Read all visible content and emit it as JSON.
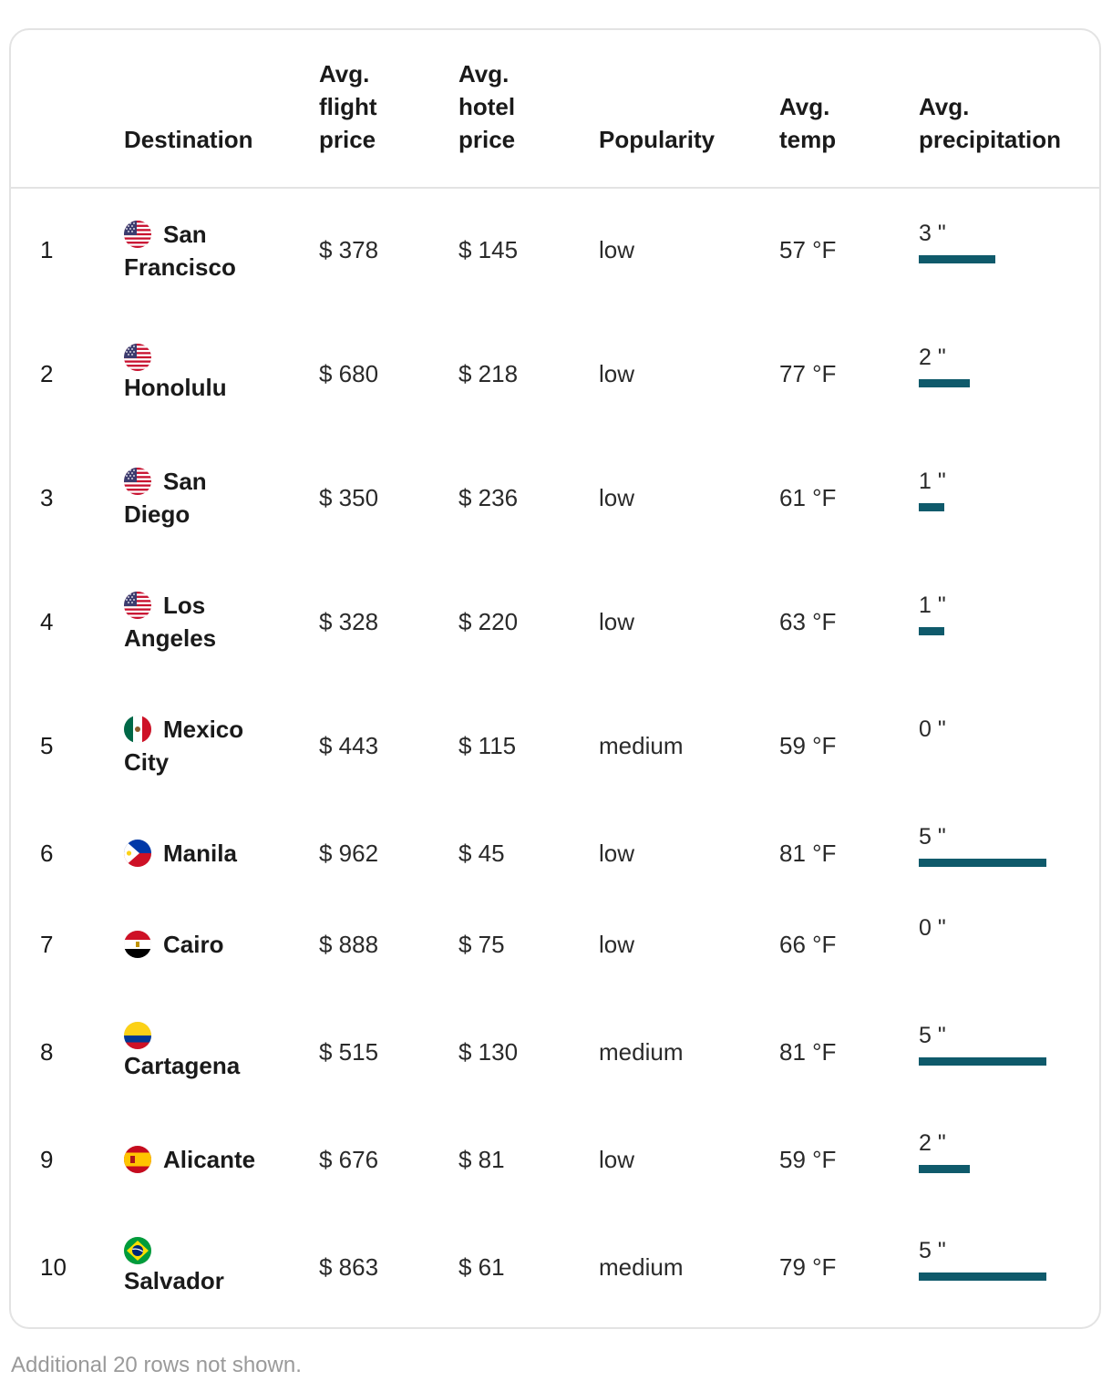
{
  "table": {
    "headers": {
      "rank": "",
      "destination": "Destination",
      "flight_line1": "Avg.",
      "flight_line2": "flight",
      "flight_line3": "price",
      "hotel_line1": "Avg.",
      "hotel_line2": "hotel",
      "hotel_line3": "price",
      "popularity": "Popularity",
      "temp_line1": "Avg.",
      "temp_line2": "temp",
      "precip_line1": "Avg.",
      "precip_line2": "precipitation"
    },
    "rows": [
      {
        "rank": "1",
        "flag": "us-flag",
        "dest_a": "San",
        "dest_b": "Francisco",
        "flight": "$ 378",
        "hotel": "$ 145",
        "popularity": "low",
        "temp": "57 °F",
        "precip": "3 \"",
        "precip_inches": 3
      },
      {
        "rank": "2",
        "flag": "us-flag",
        "dest_a": "",
        "dest_b": "Honolulu",
        "flight": "$ 680",
        "hotel": "$ 218",
        "popularity": "low",
        "temp": "77 °F",
        "precip": "2 \"",
        "precip_inches": 2
      },
      {
        "rank": "3",
        "flag": "us-flag",
        "dest_a": "San",
        "dest_b": "Diego",
        "flight": "$ 350",
        "hotel": "$ 236",
        "popularity": "low",
        "temp": "61 °F",
        "precip": "1 \"",
        "precip_inches": 1
      },
      {
        "rank": "4",
        "flag": "us-flag",
        "dest_a": "Los",
        "dest_b": "Angeles",
        "flight": "$ 328",
        "hotel": "$ 220",
        "popularity": "low",
        "temp": "63 °F",
        "precip": "1 \"",
        "precip_inches": 1
      },
      {
        "rank": "5",
        "flag": "mexico-flag",
        "dest_a": "Mexico",
        "dest_b": "City",
        "flight": "$ 443",
        "hotel": "$ 115",
        "popularity": "medium",
        "temp": "59 °F",
        "precip": "0 \"",
        "precip_inches": 0
      },
      {
        "rank": "6",
        "flag": "philippines-flag",
        "dest_a": "Manila",
        "dest_b": "",
        "flight": "$ 962",
        "hotel": "$ 45",
        "popularity": "low",
        "temp": "81 °F",
        "precip": "5 \"",
        "precip_inches": 5
      },
      {
        "rank": "7",
        "flag": "egypt-flag",
        "dest_a": "Cairo",
        "dest_b": "",
        "flight": "$ 888",
        "hotel": "$ 75",
        "popularity": "low",
        "temp": "66 °F",
        "precip": "0 \"",
        "precip_inches": 0
      },
      {
        "rank": "8",
        "flag": "colombia-flag",
        "dest_a": "",
        "dest_b": "Cartagena",
        "flight": "$ 515",
        "hotel": "$ 130",
        "popularity": "medium",
        "temp": "81 °F",
        "precip": "5 \"",
        "precip_inches": 5
      },
      {
        "rank": "9",
        "flag": "spain-flag",
        "dest_a": "Alicante",
        "dest_b": "",
        "flight": "$ 676",
        "hotel": "$ 81",
        "popularity": "low",
        "temp": "59 °F",
        "precip": "2 \"",
        "precip_inches": 2
      },
      {
        "rank": "10",
        "flag": "brazil-flag",
        "dest_a": "",
        "dest_b": "Salvador",
        "flight": "$ 863",
        "hotel": "$ 61",
        "popularity": "medium",
        "temp": "79 °F",
        "precip": "5 \"",
        "precip_inches": 5
      }
    ]
  },
  "precip_bar_color": "#0f5a6b",
  "footnote": "Additional 20 rows not shown."
}
